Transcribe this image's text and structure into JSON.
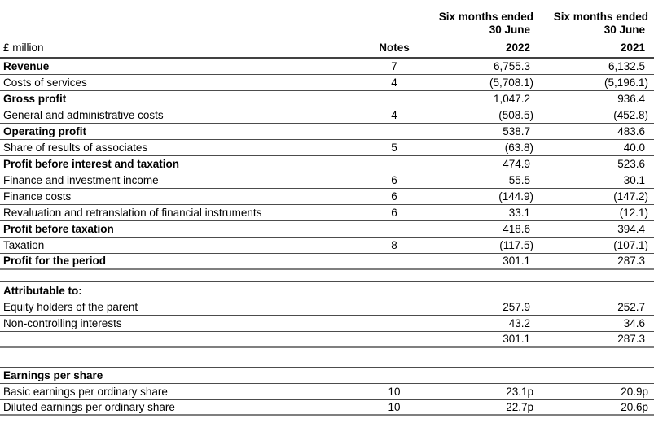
{
  "table": {
    "unit_label": "£ million",
    "notes_header": "Notes",
    "columns": [
      {
        "period": "Six months ended",
        "date": "30 June",
        "year": "2022"
      },
      {
        "period": "Six months ended",
        "date": "30 June",
        "year": "2021"
      }
    ]
  },
  "income_statement": {
    "rows": [
      {
        "label": "Revenue",
        "note": "7",
        "v2022": "6,755.3",
        "v2021": "6,132.5",
        "bold": true,
        "thick_bottom": false
      },
      {
        "label": "Costs of services",
        "note": "4",
        "v2022": "(5,708.1)",
        "v2021": "(5,196.1)",
        "bold": false,
        "thick_bottom": false
      },
      {
        "label": "Gross profit",
        "note": "",
        "v2022": "1,047.2",
        "v2021": "936.4",
        "bold": true,
        "thick_bottom": false
      },
      {
        "label": "General and administrative costs",
        "note": "4",
        "v2022": "(508.5)",
        "v2021": "(452.8)",
        "bold": false,
        "thick_bottom": false
      },
      {
        "label": "Operating profit",
        "note": "",
        "v2022": "538.7",
        "v2021": "483.6",
        "bold": true,
        "thick_bottom": false
      },
      {
        "label": "Share of results of associates",
        "note": "5",
        "v2022": "(63.8)",
        "v2021": "40.0",
        "bold": false,
        "thick_bottom": false
      },
      {
        "label": "Profit before interest and taxation",
        "note": "",
        "v2022": "474.9",
        "v2021": "523.6",
        "bold": true,
        "thick_bottom": false
      },
      {
        "label": "Finance and investment income",
        "note": "6",
        "v2022": "55.5",
        "v2021": "30.1",
        "bold": false,
        "thick_bottom": false
      },
      {
        "label": "Finance costs",
        "note": "6",
        "v2022": "(144.9)",
        "v2021": "(147.2)",
        "bold": false,
        "thick_bottom": false
      },
      {
        "label": "Revaluation and retranslation of financial instruments",
        "note": "6",
        "v2022": "33.1",
        "v2021": "(12.1)",
        "bold": false,
        "thick_bottom": false
      },
      {
        "label": "Profit before taxation",
        "note": "",
        "v2022": "418.6",
        "v2021": "394.4",
        "bold": true,
        "thick_bottom": false
      },
      {
        "label": "Taxation",
        "note": "8",
        "v2022": "(117.5)",
        "v2021": "(107.1)",
        "bold": false,
        "thick_bottom": false
      },
      {
        "label": "Profit for the period",
        "note": "",
        "v2022": "301.1",
        "v2021": "287.3",
        "bold": true,
        "thick_bottom": true
      }
    ]
  },
  "attributable": {
    "title": "Attributable to:",
    "rows": [
      {
        "label": "Equity holders of the parent",
        "note": "",
        "v2022": "257.9",
        "v2021": "252.7",
        "bold": false,
        "thick_bottom": false
      },
      {
        "label": "Non-controlling interests",
        "note": "",
        "v2022": "43.2",
        "v2021": "34.6",
        "bold": false,
        "thick_bottom": false
      },
      {
        "label": "",
        "note": "",
        "v2022": "301.1",
        "v2021": "287.3",
        "bold": false,
        "thick_bottom": true
      }
    ]
  },
  "earnings_per_share": {
    "title": "Earnings per share",
    "rows": [
      {
        "label": "Basic earnings per ordinary share",
        "note": "10",
        "v2022": "23.1p",
        "v2021": "20.9p",
        "bold": false,
        "thick_bottom": false
      },
      {
        "label": "Diluted earnings per ordinary share",
        "note": "10",
        "v2022": "22.7p",
        "v2021": "20.6p",
        "bold": false,
        "thick_bottom": true
      }
    ]
  },
  "colors": {
    "background": "#ffffff",
    "text": "#000000",
    "rule_thin": "#4c4c4c",
    "rule_thick": "#7f7f7f"
  }
}
